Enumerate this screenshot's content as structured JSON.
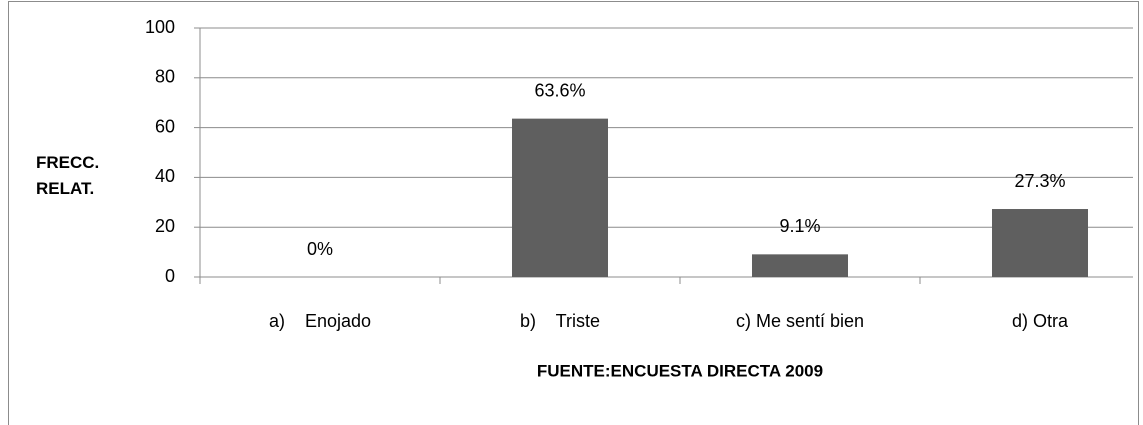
{
  "chart_data": {
    "type": "bar",
    "y_label": "FRECC. RELAT.",
    "x_label": "FUENTE:ENCUESTA DIRECTA 2009",
    "categories": [
      "a)    Enojado",
      "b)    Triste",
      "c) Me sentí bien",
      "d) Otra"
    ],
    "values": [
      0,
      63.6,
      9.1,
      27.3
    ],
    "value_labels": [
      "0%",
      "63.6%",
      "9.1%",
      "27.3%"
    ],
    "color": "#5f5f5f",
    "ylim": [
      0,
      100
    ],
    "yticks": [
      0,
      20,
      40,
      60,
      80,
      100
    ],
    "grid": true
  }
}
